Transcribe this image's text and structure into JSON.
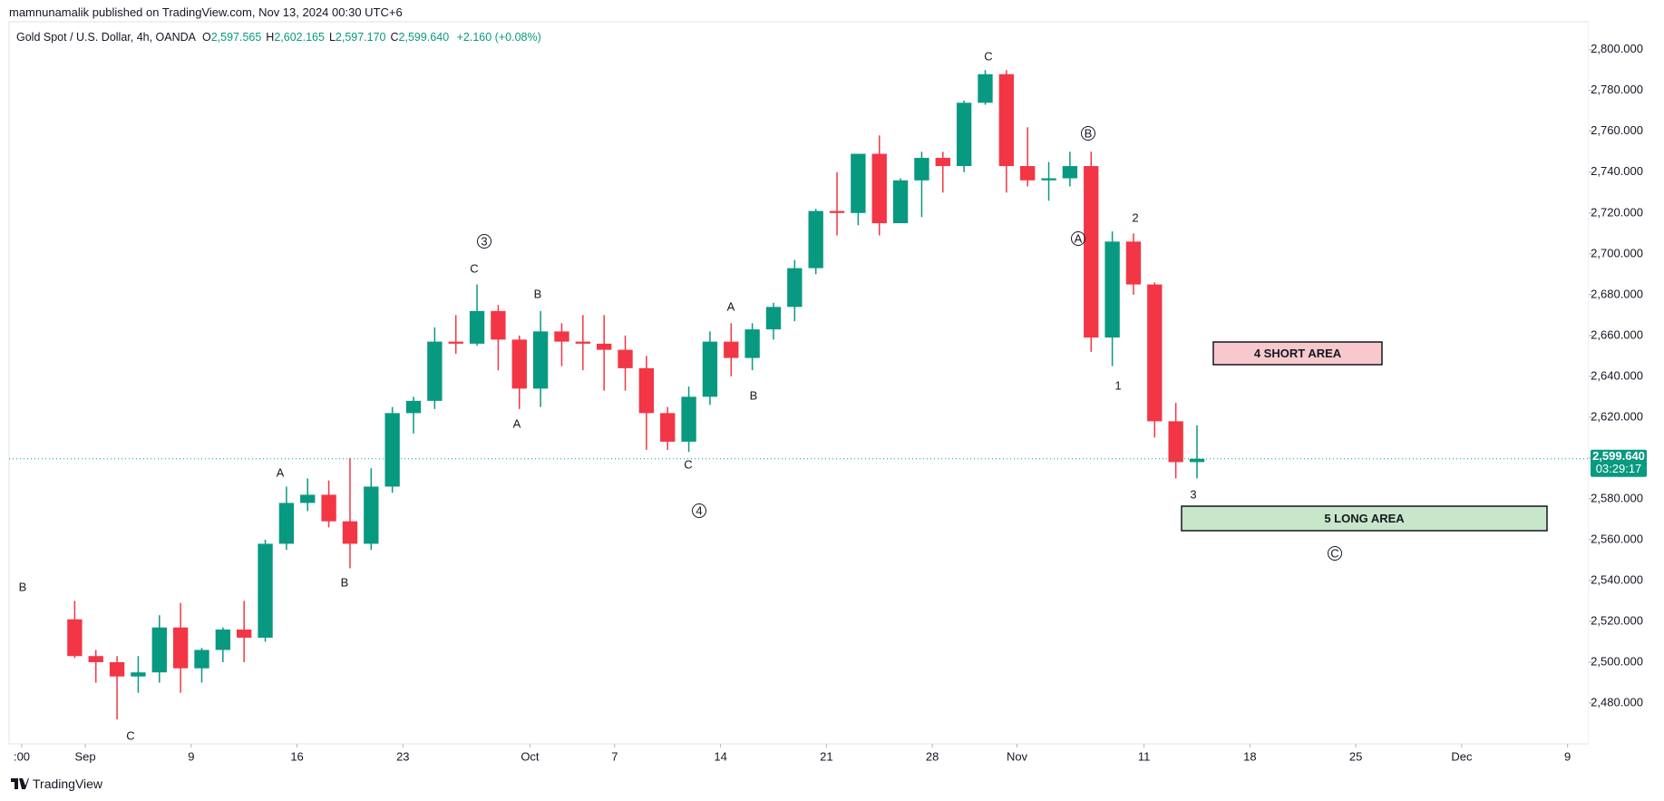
{
  "header": {
    "publisher": "mamnunamalik published on TradingView.com, Nov 13, 2024 00:30 UTC+6"
  },
  "footer": {
    "logo": "TradingView"
  },
  "chart_data": {
    "type": "candlestick",
    "symbol": "Gold Spot / U.S. Dollar, 4h, OANDA",
    "ohlc_legend": [
      {
        "key": "O",
        "value": "2,597.565"
      },
      {
        "key": "H",
        "value": "2,602.165"
      },
      {
        "key": "L",
        "value": "2,597.170"
      },
      {
        "key": "C",
        "value": "2,599.640"
      }
    ],
    "change": "+2.160 (+0.08%)",
    "up_color": "#089981",
    "down_color": "#f23645",
    "x": [
      "2024-08-30",
      "2024-09-02",
      "2024-09-03",
      "2024-09-04",
      "2024-09-05",
      "2024-09-06",
      "2024-09-09",
      "2024-09-10",
      "2024-09-11",
      "2024-09-12",
      "2024-09-13",
      "2024-09-16",
      "2024-09-17",
      "2024-09-18",
      "2024-09-19",
      "2024-09-20",
      "2024-09-23",
      "2024-09-24",
      "2024-09-25",
      "2024-09-26",
      "2024-09-27",
      "2024-09-30",
      "2024-10-01",
      "2024-10-02",
      "2024-10-03",
      "2024-10-04",
      "2024-10-07",
      "2024-10-08",
      "2024-10-09",
      "2024-10-10",
      "2024-10-11",
      "2024-10-14",
      "2024-10-15",
      "2024-10-16",
      "2024-10-17",
      "2024-10-18",
      "2024-10-21",
      "2024-10-22",
      "2024-10-23",
      "2024-10-24",
      "2024-10-25",
      "2024-10-28",
      "2024-10-29",
      "2024-10-30",
      "2024-10-31",
      "2024-11-01",
      "2024-11-04",
      "2024-11-05",
      "2024-11-06",
      "2024-11-07",
      "2024-11-08",
      "2024-11-11",
      "2024-11-12",
      "2024-11-13"
    ],
    "open": [
      2521,
      2503,
      2500,
      2493,
      2495,
      2517,
      2497,
      2506,
      2516,
      2512,
      2558,
      2578,
      2582,
      2569,
      2558,
      2586,
      2622,
      2628,
      2657,
      2656,
      2672,
      2658,
      2634,
      2662,
      2657,
      2656,
      2653,
      2644,
      2622,
      2608,
      2630,
      2657,
      2649,
      2663,
      2674,
      2693,
      2721,
      2720,
      2749,
      2715,
      2736,
      2747,
      2743,
      2774,
      2788,
      2743,
      2736,
      2737,
      2743,
      2659,
      2706,
      2685,
      2618,
      2598
    ],
    "high": [
      2530,
      2506,
      2503,
      2503,
      2523,
      2529,
      2507,
      2517,
      2530,
      2560,
      2586,
      2590,
      2589,
      2600,
      2595,
      2625,
      2630,
      2664,
      2670,
      2685,
      2675,
      2660,
      2672,
      2666,
      2670,
      2670,
      2660,
      2650,
      2625,
      2635,
      2662,
      2666,
      2666,
      2676,
      2697,
      2722,
      2740,
      2748,
      2758,
      2737,
      2750,
      2750,
      2775,
      2790,
      2790,
      2762,
      2745,
      2750,
      2750,
      2711,
      2710,
      2686,
      2627,
      2616
    ],
    "low": [
      2502,
      2490,
      2472,
      2485,
      2490,
      2485,
      2490,
      2500,
      2500,
      2510,
      2555,
      2574,
      2566,
      2546,
      2555,
      2583,
      2612,
      2624,
      2651,
      2655,
      2643,
      2624,
      2625,
      2645,
      2643,
      2633,
      2633,
      2604,
      2604,
      2603,
      2626,
      2640,
      2643,
      2658,
      2667,
      2690,
      2709,
      2714,
      2709,
      2716,
      2718,
      2730,
      2740,
      2773,
      2730,
      2733,
      2726,
      2733,
      2652,
      2645,
      2680,
      2610,
      2590,
      2590
    ],
    "close": [
      2503,
      2500,
      2493,
      2495,
      2517,
      2497,
      2506,
      2516,
      2512,
      2558,
      2578,
      2582,
      2569,
      2558,
      2586,
      2622,
      2628,
      2657,
      2656,
      2672,
      2658,
      2634,
      2662,
      2657,
      2656,
      2653,
      2644,
      2622,
      2608,
      2630,
      2657,
      2649,
      2663,
      2674,
      2693,
      2721,
      2720,
      2749,
      2715,
      2736,
      2747,
      2743,
      2774,
      2788,
      2743,
      2736,
      2737,
      2743,
      2659,
      2706,
      2685,
      2618,
      2598,
      2599.64
    ],
    "xlim": [
      "2024-08-28",
      "2024-12-10"
    ],
    "xticks": [
      {
        "value": "2024-08-28",
        "label": ":00"
      },
      {
        "value": "2024-09-02",
        "label": "Sep"
      },
      {
        "value": "2024-09-09",
        "label": "9"
      },
      {
        "value": "2024-09-16",
        "label": "16"
      },
      {
        "value": "2024-09-23",
        "label": "23"
      },
      {
        "value": "2024-10-01",
        "label": "Oct"
      },
      {
        "value": "2024-10-07",
        "label": "7"
      },
      {
        "value": "2024-10-14",
        "label": "14"
      },
      {
        "value": "2024-10-21",
        "label": "21"
      },
      {
        "value": "2024-10-28",
        "label": "28"
      },
      {
        "value": "2024-11-01",
        "label": "Nov"
      },
      {
        "value": "2024-11-11",
        "label": "11"
      },
      {
        "value": "2024-11-18",
        "label": "18"
      },
      {
        "value": "2024-11-25",
        "label": "25"
      },
      {
        "value": "2024-12-02",
        "label": "Dec"
      },
      {
        "value": "2024-12-09",
        "label": "9"
      }
    ],
    "ylim": [
      2460,
      2811
    ],
    "yticks": [
      {
        "value": 2480,
        "label": "2,480.000"
      },
      {
        "value": 2500,
        "label": "2,500.000"
      },
      {
        "value": 2520,
        "label": "2,520.000"
      },
      {
        "value": 2540,
        "label": "2,540.000"
      },
      {
        "value": 2560,
        "label": "2,560.000"
      },
      {
        "value": 2580,
        "label": "2,580.000"
      },
      {
        "value": 2600,
        "label": "2,600.000"
      },
      {
        "value": 2620,
        "label": "2,620.000"
      },
      {
        "value": 2640,
        "label": "2,640.000"
      },
      {
        "value": 2660,
        "label": "2,660.000"
      },
      {
        "value": 2680,
        "label": "2,680.000"
      },
      {
        "value": 2700,
        "label": "2,700.000"
      },
      {
        "value": 2720,
        "label": "2,720.000"
      },
      {
        "value": 2740,
        "label": "2,740.000"
      },
      {
        "value": 2760,
        "label": "2,760.000"
      },
      {
        "value": 2780,
        "label": "2,780.000"
      },
      {
        "value": 2800,
        "label": "2,800.000"
      }
    ],
    "last_price": {
      "value": 2599.64,
      "label": "2,599.640"
    },
    "countdown": "03:29:17",
    "annotations": [
      {
        "text": "B",
        "circled": false
      },
      {
        "text": "C",
        "circled": false
      },
      {
        "text": "A",
        "circled": false
      },
      {
        "text": "B",
        "circled": false
      },
      {
        "text": "3",
        "circled": true
      },
      {
        "text": "C",
        "circled": false
      },
      {
        "text": "B",
        "circled": false
      },
      {
        "text": "A",
        "circled": false
      },
      {
        "text": "A",
        "circled": false
      },
      {
        "text": "B",
        "circled": false
      },
      {
        "text": "C",
        "circled": false
      },
      {
        "text": "4",
        "circled": true
      },
      {
        "text": "C",
        "circled": false
      },
      {
        "text": "B",
        "circled": true
      },
      {
        "text": "A",
        "circled": true
      },
      {
        "text": "2",
        "circled": false
      },
      {
        "text": "1",
        "circled": false
      },
      {
        "text": "3",
        "circled": false
      },
      {
        "text": "C",
        "circled": true
      }
    ],
    "zones": [
      {
        "text": "4  SHORT AREA",
        "color": "#f8c9cc"
      },
      {
        "text": "5 LONG AREA",
        "color": "#c8e6c9"
      }
    ]
  }
}
